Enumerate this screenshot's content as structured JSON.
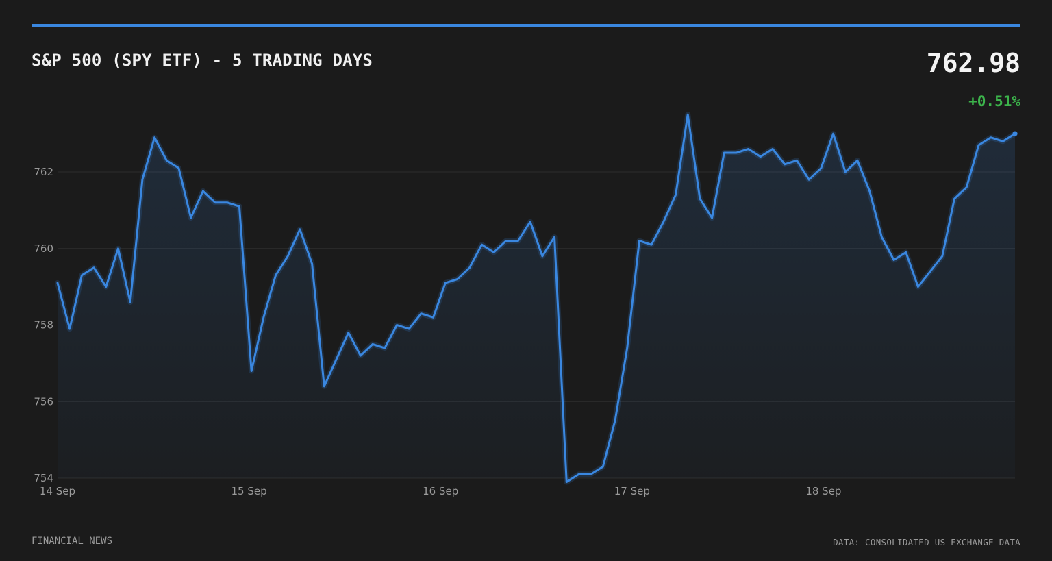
{
  "header": {
    "title": "S&P 500 (SPY ETF) - 5 TRADING DAYS",
    "price": "762.98",
    "change": "+0.51%"
  },
  "footer": {
    "source_left": "FINANCIAL NEWS",
    "source_right": "DATA: CONSOLIDATED US EXCHANGE DATA"
  },
  "colors": {
    "background": "#1b1b1b",
    "accent": "#3a87e0",
    "positive": "#3cb44b",
    "grid": "#2e2e2e",
    "muted_text": "#9a9a9a"
  },
  "chart_data": {
    "type": "area",
    "title": "S&P 500 (SPY ETF) - 5 TRADING DAYS",
    "xlabel": "",
    "ylabel": "",
    "ylim": [
      754,
      764
    ],
    "xlim": [
      0,
      5
    ],
    "y_ticks": [
      754,
      756,
      758,
      760,
      762
    ],
    "x_ticks": [
      {
        "value": 0,
        "label": "14 Sep"
      },
      {
        "value": 1,
        "label": "15 Sep"
      },
      {
        "value": 2,
        "label": "16 Sep"
      },
      {
        "value": 3,
        "label": "17 Sep"
      },
      {
        "value": 4,
        "label": "18 Sep"
      }
    ],
    "grid": true,
    "legend": "none",
    "series": [
      {
        "values": [
          759.1,
          757.9,
          759.3,
          759.5,
          759.0,
          760.0,
          758.6,
          761.8,
          762.9,
          762.3,
          762.1,
          760.8,
          761.5,
          761.2,
          761.2,
          761.1,
          756.8,
          758.2,
          759.3,
          759.8,
          760.5,
          759.6,
          756.4,
          757.1,
          757.8,
          757.2,
          757.5,
          757.4,
          758.0,
          757.9,
          758.3,
          758.2,
          759.1,
          759.2,
          759.5,
          760.1,
          759.9,
          760.2,
          760.2,
          760.7,
          759.8,
          760.3,
          753.9,
          754.1,
          754.1,
          754.3,
          755.5,
          757.4,
          760.2,
          760.1,
          760.7,
          761.4,
          763.5,
          761.3,
          760.8,
          762.5,
          762.5,
          762.6,
          762.4,
          762.6,
          762.2,
          762.3,
          761.8,
          762.1,
          763.0,
          762.0,
          762.3,
          761.5,
          760.3,
          759.7,
          759.9,
          759.0,
          759.4,
          759.8,
          761.3,
          761.6,
          762.7,
          762.9,
          762.8,
          763.0
        ]
      }
    ]
  }
}
